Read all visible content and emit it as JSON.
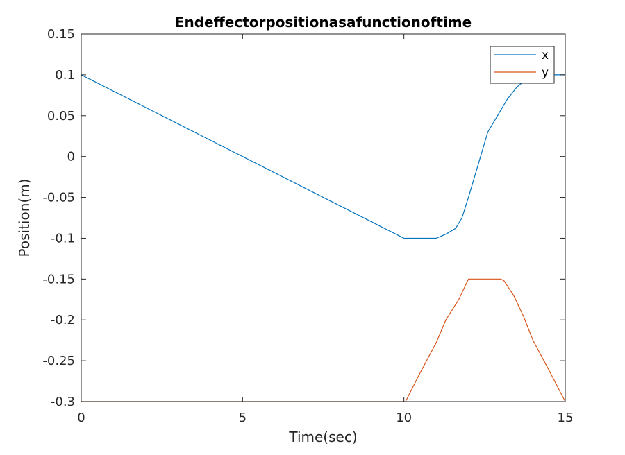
{
  "chart_data": {
    "type": "line",
    "title": "Endeffectorpositionasafunctionoftime",
    "xlabel": "Time(sec)",
    "ylabel": "Position(m)",
    "xlim": [
      0,
      15
    ],
    "ylim": [
      -0.3,
      0.15
    ],
    "xticks": [
      0,
      5,
      10,
      15
    ],
    "xtick_labels": [
      "0",
      "5",
      "10",
      "15"
    ],
    "yticks": [
      0.15,
      0.1,
      0.05,
      0,
      -0.05,
      -0.1,
      -0.15,
      -0.2,
      -0.25,
      -0.3
    ],
    "ytick_labels": [
      "0.15",
      "0.1",
      "0.05",
      "0",
      "-0.05",
      "-0.1",
      "-0.15",
      "-0.2",
      "-0.25",
      "-0.3"
    ],
    "grid": false,
    "legend_position": "top-right",
    "series": [
      {
        "name": "x",
        "color": "#0072BD",
        "x": [
          0,
          2,
          4,
          6,
          8,
          10,
          10.5,
          11,
          11.3,
          11.6,
          11.8,
          12,
          12.3,
          12.6,
          12.9,
          13.2,
          13.5,
          13.8,
          14.2,
          14.6,
          15
        ],
        "y": [
          0.1,
          0.06,
          0.02,
          -0.02,
          -0.06,
          -0.1,
          -0.1,
          -0.1,
          -0.095,
          -0.088,
          -0.075,
          -0.05,
          -0.01,
          0.03,
          0.05,
          0.07,
          0.085,
          0.095,
          0.1,
          0.1,
          0.1
        ]
      },
      {
        "name": "y",
        "color": "#D95319",
        "x": [
          0,
          5,
          9.95,
          10.05,
          10.5,
          11,
          11.3,
          11.7,
          12,
          12.5,
          13,
          13.1,
          13.4,
          13.7,
          13.8,
          13.9,
          14,
          14.5,
          15
        ],
        "y": [
          -0.3,
          -0.3,
          -0.3,
          -0.3,
          -0.265,
          -0.228,
          -0.2,
          -0.175,
          -0.15,
          -0.15,
          -0.15,
          -0.152,
          -0.17,
          -0.195,
          -0.205,
          -0.215,
          -0.225,
          -0.262,
          -0.3
        ]
      }
    ]
  }
}
